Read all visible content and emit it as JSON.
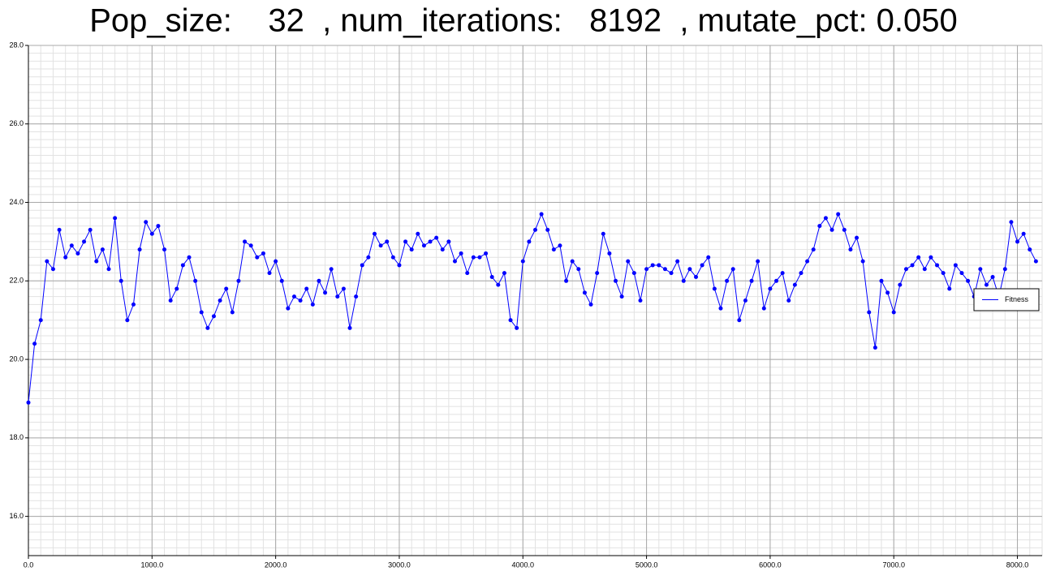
{
  "chart_data": {
    "type": "line",
    "title": "Pop_size:    32  , num_iterations:   8192  , mutate_pct: 0.050",
    "x": [
      0,
      50,
      100,
      150,
      200,
      250,
      300,
      350,
      400,
      450,
      500,
      550,
      600,
      650,
      700,
      750,
      800,
      850,
      900,
      950,
      1000,
      1050,
      1100,
      1150,
      1200,
      1250,
      1300,
      1350,
      1400,
      1450,
      1500,
      1550,
      1600,
      1650,
      1700,
      1750,
      1800,
      1850,
      1900,
      1950,
      2000,
      2050,
      2100,
      2150,
      2200,
      2250,
      2300,
      2350,
      2400,
      2450,
      2500,
      2550,
      2600,
      2650,
      2700,
      2750,
      2800,
      2850,
      2900,
      2950,
      3000,
      3050,
      3100,
      3150,
      3200,
      3250,
      3300,
      3350,
      3400,
      3450,
      3500,
      3550,
      3600,
      3650,
      3700,
      3750,
      3800,
      3850,
      3900,
      3950,
      4000,
      4050,
      4100,
      4150,
      4200,
      4250,
      4300,
      4350,
      4400,
      4450,
      4500,
      4550,
      4600,
      4650,
      4700,
      4750,
      4800,
      4850,
      4900,
      4950,
      5000,
      5050,
      5100,
      5150,
      5200,
      5250,
      5300,
      5350,
      5400,
      5450,
      5500,
      5550,
      5600,
      5650,
      5700,
      5750,
      5800,
      5850,
      5900,
      5950,
      6000,
      6050,
      6100,
      6150,
      6200,
      6250,
      6300,
      6350,
      6400,
      6450,
      6500,
      6550,
      6600,
      6650,
      6700,
      6750,
      6800,
      6850,
      6900,
      6950,
      7000,
      7050,
      7100,
      7150,
      7200,
      7250,
      7300,
      7350,
      7400,
      7450,
      7500,
      7550,
      7600,
      7650,
      7700,
      7750,
      7800,
      7850,
      7900,
      7950,
      8000,
      8050,
      8100,
      8150
    ],
    "series": [
      {
        "name": "Fitness",
        "color": "#0000ff",
        "values": [
          18.9,
          20.4,
          21.0,
          22.5,
          22.3,
          23.3,
          22.6,
          22.9,
          22.7,
          23.0,
          23.3,
          22.5,
          22.8,
          22.3,
          23.6,
          22.0,
          21.0,
          21.4,
          22.8,
          23.5,
          23.2,
          23.4,
          22.8,
          21.5,
          21.8,
          22.4,
          22.6,
          22.0,
          21.2,
          20.8,
          21.1,
          21.5,
          21.8,
          21.2,
          22.0,
          23.0,
          22.9,
          22.6,
          22.7,
          22.2,
          22.5,
          22.0,
          21.3,
          21.6,
          21.5,
          21.8,
          21.4,
          22.0,
          21.7,
          22.3,
          21.6,
          21.8,
          20.8,
          21.6,
          22.4,
          22.6,
          23.2,
          22.9,
          23.0,
          22.6,
          22.4,
          23.0,
          22.8,
          23.2,
          22.9,
          23.0,
          23.1,
          22.8,
          23.0,
          22.5,
          22.7,
          22.2,
          22.6,
          22.6,
          22.7,
          22.1,
          21.9,
          22.2,
          21.0,
          20.8,
          22.5,
          23.0,
          23.3,
          23.7,
          23.3,
          22.8,
          22.9,
          22.0,
          22.5,
          22.3,
          21.7,
          21.4,
          22.2,
          23.2,
          22.7,
          22.0,
          21.6,
          22.5,
          22.2,
          21.5,
          22.3,
          22.4,
          22.4,
          22.3,
          22.2,
          22.5,
          22.0,
          22.3,
          22.1,
          22.4,
          22.6,
          21.8,
          21.3,
          22.0,
          22.3,
          21.0,
          21.5,
          22.0,
          22.5,
          21.3,
          21.8,
          22.0,
          22.2,
          21.5,
          21.9,
          22.2,
          22.5,
          22.8,
          23.4,
          23.6,
          23.3,
          23.7,
          23.3,
          22.8,
          23.1,
          22.5,
          21.2,
          20.3,
          22.0,
          21.7,
          21.2,
          21.9,
          22.3,
          22.4,
          22.6,
          22.3,
          22.6,
          22.4,
          22.2,
          21.8,
          22.4,
          22.2,
          22.0,
          21.6,
          22.3,
          21.9,
          22.1,
          21.6,
          22.3,
          23.5,
          23.0,
          23.2,
          22.8,
          22.5
        ]
      }
    ],
    "xlim": [
      0,
      8200
    ],
    "ylim": [
      15,
      28
    ],
    "xticks": [
      {
        "value": 0,
        "label": "0.0"
      },
      {
        "value": 1000,
        "label": "1000.0"
      },
      {
        "value": 2000,
        "label": "2000.0"
      },
      {
        "value": 3000,
        "label": "3000.0"
      },
      {
        "value": 4000,
        "label": "4000.0"
      },
      {
        "value": 5000,
        "label": "5000.0"
      },
      {
        "value": 6000,
        "label": "6000.0"
      },
      {
        "value": 7000,
        "label": "7000.0"
      },
      {
        "value": 8000,
        "label": "8000.0"
      }
    ],
    "yticks": [
      {
        "value": 16,
        "label": "16.0"
      },
      {
        "value": 18,
        "label": "18.0"
      },
      {
        "value": 20,
        "label": "20.0"
      },
      {
        "value": 22,
        "label": "22.0"
      },
      {
        "value": 24,
        "label": "24.0"
      },
      {
        "value": 26,
        "label": "26.0"
      },
      {
        "value": 28,
        "label": "28.0"
      }
    ],
    "grid": true,
    "minor_divisions": 10,
    "legend": "right"
  }
}
